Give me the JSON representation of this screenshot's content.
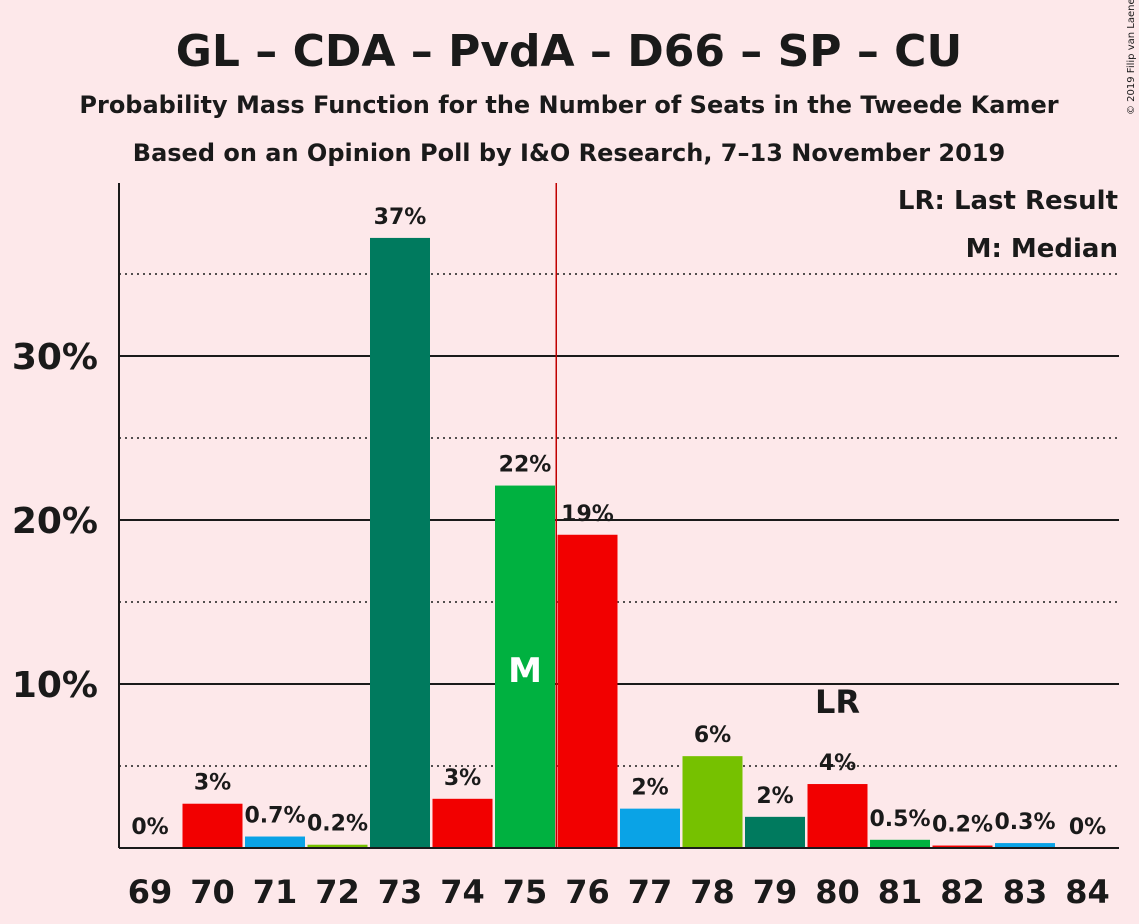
{
  "chart_data": {
    "type": "bar",
    "title": "GL – CDA – PvdA – D66 – SP – CU",
    "subtitle1": "Probability Mass Function for the Number of Seats in the Tweede Kamer",
    "subtitle2": "Based on an Opinion Poll by I&O Research, 7–13 November 2019",
    "copyright": "© 2019 Filip van Laenen",
    "legend": {
      "lr": "LR: Last Result",
      "m": "M: Median"
    },
    "ylim": [
      0,
      40
    ],
    "yticks": [
      {
        "value": 10,
        "label": "10%"
      },
      {
        "value": 20,
        "label": "20%"
      },
      {
        "value": 30,
        "label": "30%"
      }
    ],
    "dotted_lines": [
      5,
      15,
      25,
      35
    ],
    "categories": [
      "69",
      "70",
      "71",
      "72",
      "73",
      "74",
      "75",
      "76",
      "77",
      "78",
      "79",
      "80",
      "81",
      "82",
      "83",
      "84"
    ],
    "values": [
      0,
      2.7,
      0.7,
      0.2,
      37.2,
      3.0,
      22.1,
      19.1,
      2.4,
      5.6,
      1.9,
      3.9,
      0.5,
      0.15,
      0.3,
      0
    ],
    "labels": [
      "0%",
      "3%",
      "0.7%",
      "0.2%",
      "37%",
      "3%",
      "22%",
      "19%",
      "2%",
      "6%",
      "2%",
      "4%",
      "0.5%",
      "0.2%",
      "0.3%",
      "0%"
    ],
    "colors": [
      "#f20000",
      "#f20000",
      "#0aa3e6",
      "#76c100",
      "#007a5e",
      "#f20000",
      "#00b140",
      "#f20000",
      "#0aa3e6",
      "#76c100",
      "#007a5e",
      "#f20000",
      "#00b140",
      "#f20000",
      "#0aa3e6",
      "#76c100"
    ],
    "median_index": 6,
    "median_text": "M",
    "majority_after_index": 7,
    "majority_color": "#c00000",
    "last_result_index": 11,
    "last_result_text": "LR"
  }
}
